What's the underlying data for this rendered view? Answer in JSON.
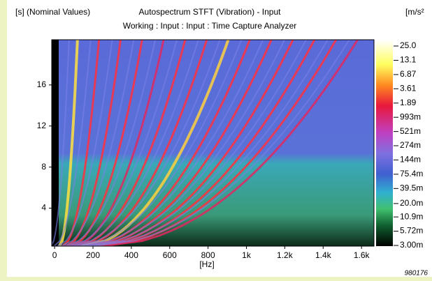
{
  "chart_data": {
    "type": "spectrogram",
    "title": "Autospectrum STFT (Vibration) - Input",
    "subtitle": "Working : Input : Input : Time Capture Analyzer",
    "y_label": "[s] (Nominal Values)",
    "x_label": "[Hz]",
    "colorbar_label": "[m/s²",
    "footnote": "980176",
    "xlim": [
      -15,
      1665
    ],
    "xticks": [
      0,
      200,
      400,
      600,
      800,
      {
        "value": 1000,
        "label": "1k"
      },
      {
        "value": 1200,
        "label": "1.2k"
      },
      {
        "value": 1400,
        "label": "1.4k"
      },
      {
        "value": 1600,
        "label": "1.6k"
      }
    ],
    "ylim": [
      0.3,
      20.4
    ],
    "yticks": [
      4,
      8,
      12,
      16
    ],
    "clim": [
      0.003,
      25
    ],
    "colorbar_log": true,
    "colorbar_ticks": [
      {
        "value": 25,
        "label": "25.0"
      },
      13.1,
      6.87,
      3.61,
      1.89,
      {
        "value": 0.993,
        "label": "993m"
      },
      {
        "value": 0.521,
        "label": "521m"
      },
      {
        "value": 0.274,
        "label": "274m"
      },
      {
        "value": 0.144,
        "label": "144m"
      },
      {
        "value": 0.0754,
        "label": "75.4m"
      },
      {
        "value": 0.0395,
        "label": "39.5m"
      },
      {
        "value": 0.02,
        "label": "20.0m"
      },
      {
        "value": 0.0109,
        "label": "10.9m"
      },
      {
        "value": 0.00572,
        "label": "5.72m"
      },
      {
        "value": 0.003,
        "label": "3.00m"
      }
    ]
  }
}
